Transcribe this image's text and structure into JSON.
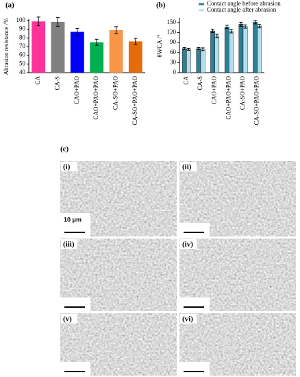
{
  "chart_data": [
    {
      "type": "bar",
      "title": "(a)",
      "y_label": "Abrasion resistance /%",
      "categories": [
        "CA",
        "CA-S",
        "CAO+PAO",
        "CAO+PAO+PAO",
        "CA-SO+PAO",
        "CA-SO+PAO+PAO"
      ],
      "values": [
        99,
        98.5,
        87,
        75,
        89,
        76
      ],
      "errors": [
        5,
        5,
        4,
        3.5,
        4,
        3.5
      ],
      "colors": [
        "#ff3399",
        "#808080",
        "#0000ff",
        "#00b050",
        "#f79646",
        "#e46c0a"
      ],
      "ylim": [
        40,
        100
      ],
      "yticks": [
        40,
        50,
        60,
        70,
        80,
        90,
        100
      ],
      "grid": false
    },
    {
      "type": "bar",
      "title": "(b)",
      "y_label": "θWCA /°",
      "categories": [
        "CA",
        "CA-S",
        "CAO+PAO",
        "CAO+PAO+PAO",
        "CA-SO+PAO",
        "CA-SO+PAO+PAO"
      ],
      "series": [
        {
          "name": "Contact angle  before abrasion",
          "color": "#2e7f96",
          "values": [
            72,
            72,
            125,
            137,
            145,
            151
          ],
          "errors": [
            3,
            3,
            5,
            5,
            6,
            5
          ]
        },
        {
          "name": "Contact angle after abrasion",
          "color": "#b7dee8",
          "values": [
            70,
            70,
            110,
            124,
            138,
            139
          ],
          "errors": [
            3,
            4,
            5,
            5,
            5,
            5
          ]
        }
      ],
      "ylim": [
        0,
        160
      ],
      "yticks": [
        0,
        30,
        60,
        90,
        120,
        150
      ],
      "grid": false,
      "legend": "top"
    }
  ],
  "panel_c": {
    "title": "(c)",
    "images": [
      "(i)",
      "(ii)",
      "(iii)",
      "(iv)",
      "(v)",
      "(vi)"
    ],
    "scale_label": "10 μm"
  }
}
